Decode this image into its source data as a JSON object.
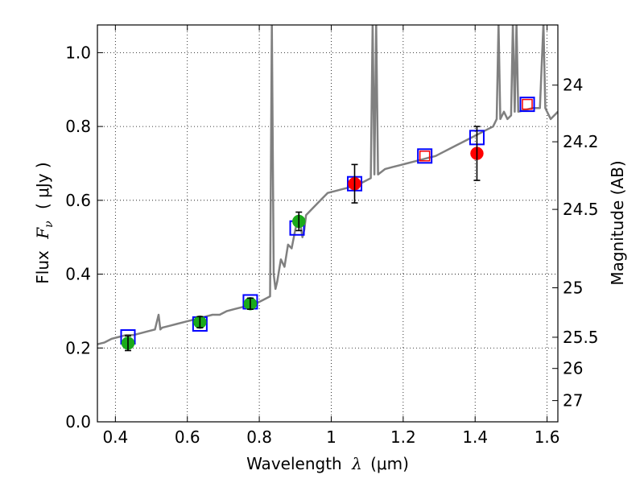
{
  "chart_data": {
    "type": "scatter",
    "xlabel_prefix": "Wavelength",
    "xlabel_symbol": "λ",
    "xlabel_unit": "(μm)",
    "ylabel_prefix": "Flux",
    "ylabel_symbol": "F",
    "ylabel_sub": "ν",
    "ylabel_unit": "( μJy )",
    "y2label": "Magnitude (AB)",
    "xlim": [
      0.35,
      1.63
    ],
    "ylim": [
      0.0,
      1.075
    ],
    "grid": true,
    "xticks": [
      0.4,
      0.6,
      0.8,
      1.0,
      1.2,
      1.4,
      1.6
    ],
    "xtick_labels": [
      "0.4",
      "0.6",
      "0.8",
      "1",
      "1.2",
      "1.4",
      "1.6"
    ],
    "yticks": [
      0.0,
      0.2,
      0.4,
      0.6,
      0.8,
      1.0
    ],
    "ytick_labels": [
      "0.0",
      "0.2",
      "0.4",
      "0.6",
      "0.8",
      "1.0"
    ],
    "y2ticks": [
      24,
      24.2,
      24.5,
      25,
      25.5,
      26,
      27
    ],
    "y2tick_labels": [
      "24",
      "24.2",
      "24.5",
      "25",
      "25.5",
      "26",
      "27"
    ],
    "colors": {
      "spectrum": "#808080",
      "detection_green": "#1aaa1a",
      "detection_red": "#ff0000",
      "model_square": "#0000ff",
      "upper_square": "#ff0000"
    },
    "series": [
      {
        "kind": "line",
        "x": [
          0.35,
          0.37,
          0.39,
          0.41,
          0.43,
          0.45,
          0.47,
          0.49,
          0.51,
          0.52,
          0.525,
          0.53,
          0.55,
          0.57,
          0.59,
          0.61,
          0.63,
          0.65,
          0.67,
          0.69,
          0.71,
          0.73,
          0.75,
          0.77,
          0.79,
          0.81,
          0.83,
          0.835,
          0.84,
          0.845,
          0.85,
          0.86,
          0.87,
          0.88,
          0.89,
          0.9,
          0.91,
          0.92,
          0.925,
          0.93,
          0.95,
          0.97,
          0.99,
          1.01,
          1.03,
          1.05,
          1.07,
          1.09,
          1.11,
          1.115,
          1.12,
          1.125,
          1.13,
          1.15,
          1.17,
          1.19,
          1.21,
          1.23,
          1.25,
          1.27,
          1.29,
          1.31,
          1.33,
          1.35,
          1.37,
          1.39,
          1.41,
          1.43,
          1.45,
          1.46,
          1.465,
          1.47,
          1.48,
          1.49,
          1.5,
          1.505,
          1.51,
          1.515,
          1.52,
          1.54,
          1.56,
          1.58,
          1.59,
          1.595,
          1.6,
          1.61,
          1.63
        ],
        "y": [
          0.21,
          0.215,
          0.225,
          0.23,
          0.235,
          0.235,
          0.24,
          0.245,
          0.25,
          0.29,
          0.25,
          0.255,
          0.26,
          0.265,
          0.27,
          0.275,
          0.28,
          0.285,
          0.29,
          0.29,
          0.3,
          0.305,
          0.31,
          0.315,
          0.32,
          0.33,
          0.34,
          1.08,
          0.4,
          0.36,
          0.38,
          0.44,
          0.42,
          0.48,
          0.47,
          0.52,
          0.56,
          0.5,
          0.52,
          0.56,
          0.58,
          0.6,
          0.62,
          0.625,
          0.63,
          0.635,
          0.64,
          0.65,
          0.66,
          1.08,
          0.67,
          1.08,
          0.67,
          0.685,
          0.69,
          0.695,
          0.7,
          0.705,
          0.71,
          0.715,
          0.72,
          0.73,
          0.74,
          0.75,
          0.76,
          0.77,
          0.78,
          0.79,
          0.8,
          0.82,
          1.08,
          0.82,
          0.84,
          0.82,
          0.83,
          1.08,
          0.84,
          1.08,
          0.84,
          0.845,
          0.85,
          0.85,
          1.08,
          0.85,
          0.84,
          0.82,
          0.84
        ]
      },
      {
        "kind": "model_squares",
        "x": [
          0.435,
          0.635,
          0.775,
          0.905,
          1.065,
          1.26,
          1.405,
          1.545
        ],
        "y": [
          0.23,
          0.265,
          0.325,
          0.525,
          0.645,
          0.72,
          0.77,
          0.86
        ]
      },
      {
        "kind": "points_green",
        "x": [
          0.435,
          0.635,
          0.775,
          0.91
        ],
        "y": [
          0.213,
          0.27,
          0.32,
          0.543
        ],
        "yerr": [
          0.02,
          0.015,
          0.015,
          0.025
        ]
      },
      {
        "kind": "points_red",
        "x": [
          1.065,
          1.405
        ],
        "y": [
          0.645,
          0.727
        ],
        "yerr": [
          0.052,
          0.073
        ]
      },
      {
        "kind": "upper_limit_squares",
        "x": [
          1.26,
          1.545
        ],
        "y": [
          0.72,
          0.86
        ]
      }
    ]
  }
}
